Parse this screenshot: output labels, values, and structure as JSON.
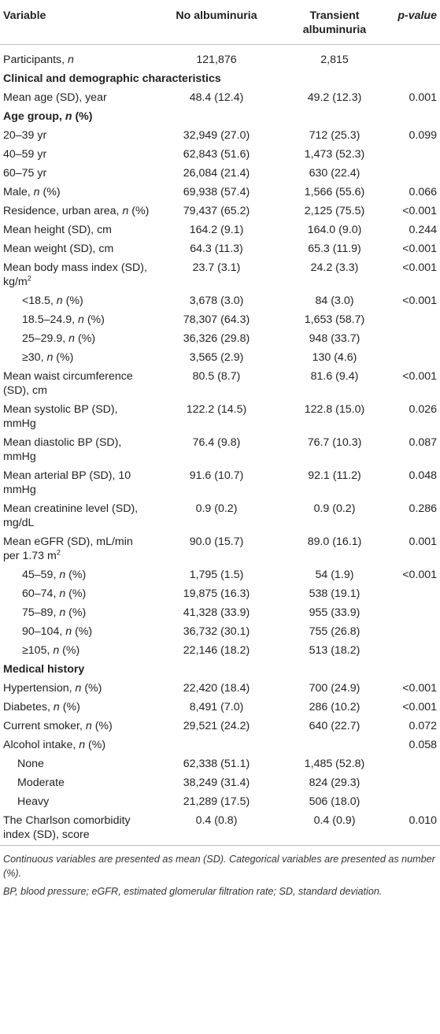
{
  "header": {
    "variable": "Variable",
    "no_albuminuria": "No albuminuria",
    "transient_line1": "Transient",
    "transient_line2": "albuminuria",
    "p_value": "p-value"
  },
  "rows": [
    {
      "label": "Participants, n",
      "no": "121,876",
      "tr": "2,815",
      "p": ""
    },
    {
      "label": "Clinical and demographic characteristics"
    },
    {
      "label": "Mean age (SD), year",
      "no": "48.4 (12.4)",
      "tr": "49.2 (12.3)",
      "p": "0.001"
    },
    {
      "label": "Age group, n (%)"
    },
    {
      "label": "20–39 yr",
      "no": "32,949 (27.0)",
      "tr": "712 (25.3)",
      "p": "0.099"
    },
    {
      "label": "40–59 yr",
      "no": "62,843 (51.6)",
      "tr": "1,473 (52.3)",
      "p": ""
    },
    {
      "label": "60–75 yr",
      "no": "26,084 (21.4)",
      "tr": "630 (22.4)",
      "p": ""
    },
    {
      "label": "Male, n (%)",
      "no": "69,938 (57.4)",
      "tr": "1,566 (55.6)",
      "p": "0.066"
    },
    {
      "label": "Residence, urban area, n (%)",
      "no": "79,437 (65.2)",
      "tr": "2,125 (75.5)",
      "p": "<0.001"
    },
    {
      "label": "Mean height (SD), cm",
      "no": "164.2 (9.1)",
      "tr": "164.0 (9.0)",
      "p": "0.244"
    },
    {
      "label": "Mean weight (SD), cm",
      "no": "64.3 (11.3)",
      "tr": "65.3 (11.9)",
      "p": "<0.001"
    },
    {
      "label": "Mean body mass index (SD), kg/m2",
      "no": "23.7 (3.1)",
      "tr": "24.2 (3.3)",
      "p": "<0.001"
    },
    {
      "label": "<18.5, n (%)",
      "no": "3,678 (3.0)",
      "tr": "84 (3.0)",
      "p": "<0.001"
    },
    {
      "label": "18.5–24.9, n (%)",
      "no": "78,307 (64.3)",
      "tr": "1,653 (58.7)",
      "p": ""
    },
    {
      "label": "25–29.9, n (%)",
      "no": "36,326 (29.8)",
      "tr": "948 (33.7)",
      "p": ""
    },
    {
      "label": "≥30, n (%)",
      "no": "3,565 (2.9)",
      "tr": "130 (4.6)",
      "p": ""
    },
    {
      "label": "Mean waist circumference (SD), cm",
      "no": "80.5 (8.7)",
      "tr": "81.6 (9.4)",
      "p": "<0.001"
    },
    {
      "label": "Mean systolic BP (SD), mmHg",
      "no": "122.2 (14.5)",
      "tr": "122.8 (15.0)",
      "p": "0.026"
    },
    {
      "label": "Mean diastolic BP (SD), mmHg",
      "no": "76.4 (9.8)",
      "tr": "76.7 (10.3)",
      "p": "0.087"
    },
    {
      "label": "Mean arterial BP (SD), 10 mmHg",
      "no": "91.6 (10.7)",
      "tr": "92.1 (11.2)",
      "p": "0.048"
    },
    {
      "label": "Mean creatinine level (SD), mg/dL",
      "no": "0.9 (0.2)",
      "tr": "0.9 (0.2)",
      "p": "0.286"
    },
    {
      "label": "Mean eGFR (SD), mL/min per 1.73 m2",
      "no": "90.0 (15.7)",
      "tr": "89.0 (16.1)",
      "p": "0.001"
    },
    {
      "label": "45–59, n (%)",
      "no": "1,795 (1.5)",
      "tr": "54 (1.9)",
      "p": "<0.001"
    },
    {
      "label": "60–74, n (%)",
      "no": "19,875 (16.3)",
      "tr": "538 (19.1)",
      "p": ""
    },
    {
      "label": "75–89, n (%)",
      "no": "41,328 (33.9)",
      "tr": "955 (33.9)",
      "p": ""
    },
    {
      "label": "90–104, n (%)",
      "no": "36,732 (30.1)",
      "tr": "755 (26.8)",
      "p": ""
    },
    {
      "label": "≥105, n (%)",
      "no": "22,146 (18.2)",
      "tr": "513 (18.2)",
      "p": ""
    },
    {
      "label": "Medical history"
    },
    {
      "label": "Hypertension, n (%)",
      "no": "22,420 (18.4)",
      "tr": "700 (24.9)",
      "p": "<0.001"
    },
    {
      "label": "Diabetes, n (%)",
      "no": "8,491 (7.0)",
      "tr": "286 (10.2)",
      "p": "<0.001"
    },
    {
      "label": "Current smoker, n (%)",
      "no": "29,521 (24.2)",
      "tr": "640 (22.7)",
      "p": "0.072"
    },
    {
      "label": "Alcohol intake, n (%)",
      "no": "",
      "tr": "",
      "p": "0.058"
    },
    {
      "label": "None",
      "no": "62,338 (51.1)",
      "tr": "1,485 (52.8)",
      "p": ""
    },
    {
      "label": "Moderate",
      "no": "38,249 (31.4)",
      "tr": "824 (29.3)",
      "p": ""
    },
    {
      "label": "Heavy",
      "no": "21,289 (17.5)",
      "tr": "506 (18.0)",
      "p": ""
    },
    {
      "label": "The Charlson comorbidity index (SD), score",
      "no": "0.4 (0.8)",
      "tr": "0.4 (0.9)",
      "p": "0.010"
    }
  ],
  "notes": {
    "line1": "Continuous variables are presented as mean (SD). Categorical variables are presented as number (%).",
    "line2": "BP, blood pressure; eGFR, estimated glomerular filtration rate; SD, standard deviation."
  }
}
